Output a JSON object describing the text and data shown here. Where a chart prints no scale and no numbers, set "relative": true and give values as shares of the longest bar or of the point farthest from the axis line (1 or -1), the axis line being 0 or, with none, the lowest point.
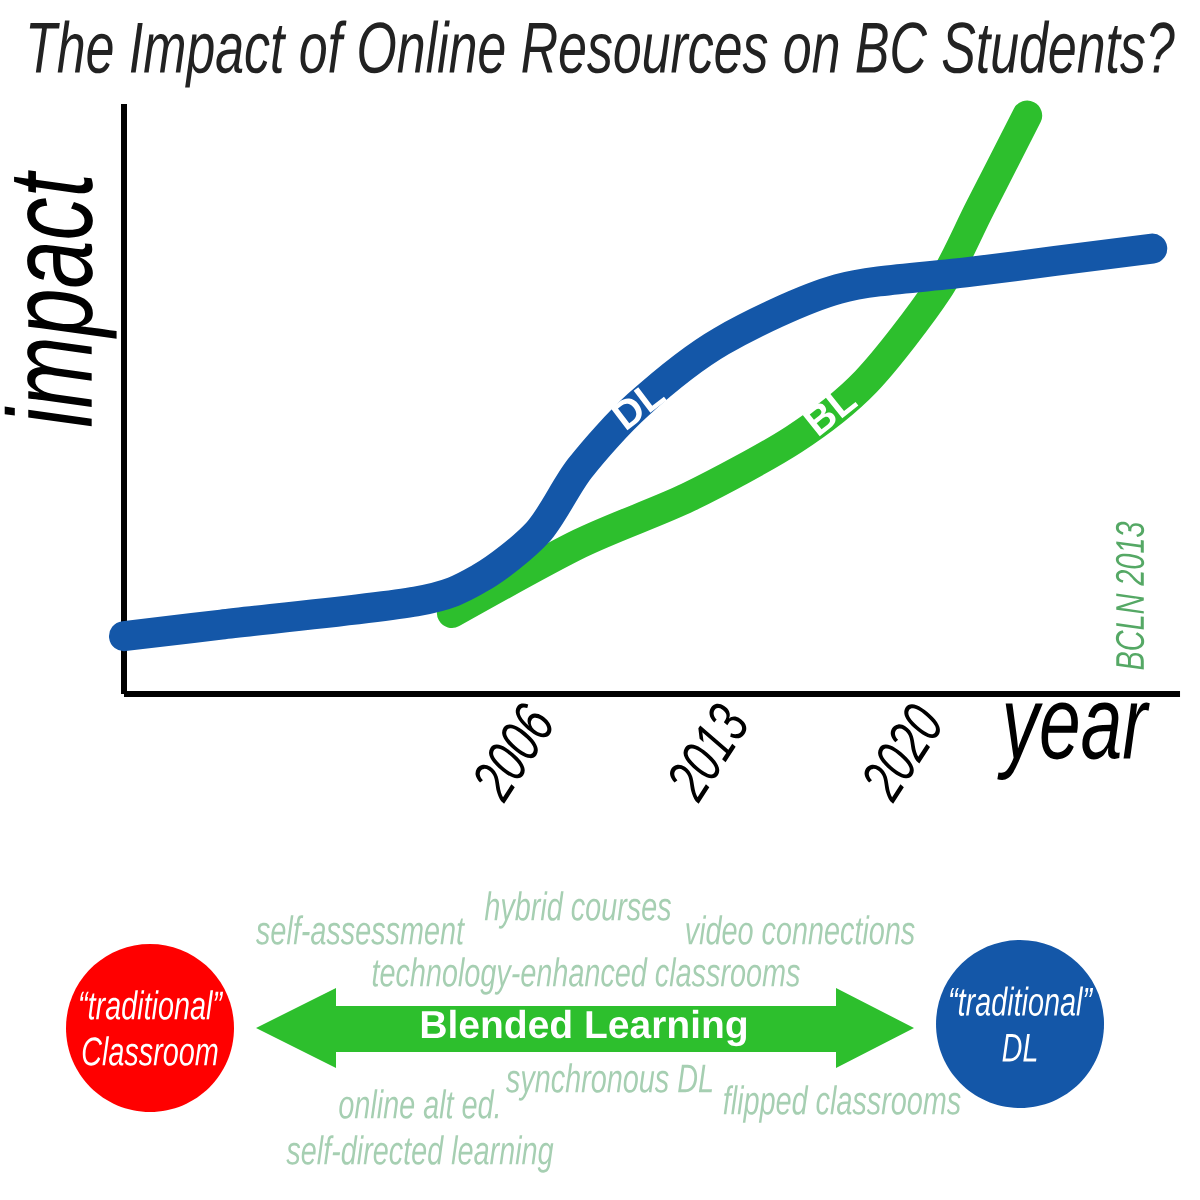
{
  "chart_data": {
    "type": "line",
    "title": "The Impact of Online Resources on BC Students?",
    "xlabel": "year",
    "ylabel": "impact",
    "relative": true,
    "xlim": [
      1992,
      2030
    ],
    "xticks": [
      2006,
      2013,
      2020
    ],
    "line_style": "solid",
    "series": [
      {
        "name": "DL",
        "color": "#1457a8",
        "x": [
          1992,
          1995.5,
          2002.5,
          2004.8,
          2006.9,
          2008.4,
          2010.5,
          2013.5,
          2017.7,
          2022.5,
          2029
        ],
        "values": [
          0.1,
          0.12,
          0.16,
          0.2,
          0.28,
          0.39,
          0.5,
          0.61,
          0.7,
          0.73,
          0.77
        ]
      },
      {
        "name": "BL",
        "color": "#2dbf2d",
        "x": [
          2003.8,
          2008.4,
          2012.3,
          2016.1,
          2018.7,
          2021.3,
          2022.8,
          2024.5
        ],
        "values": [
          0.14,
          0.26,
          0.34,
          0.44,
          0.54,
          0.7,
          0.84,
          1.0
        ]
      }
    ],
    "annotations": [
      "BCLN 2013",
      "“traditional” Classroom",
      "Blended Learning",
      "“traditional” DL",
      "self-assessment",
      "hybrid courses",
      "video connections",
      "technology-enhanced classrooms",
      "synchronous DL",
      "online alt ed.",
      "flipped classrooms",
      "self-directed learning"
    ]
  }
}
